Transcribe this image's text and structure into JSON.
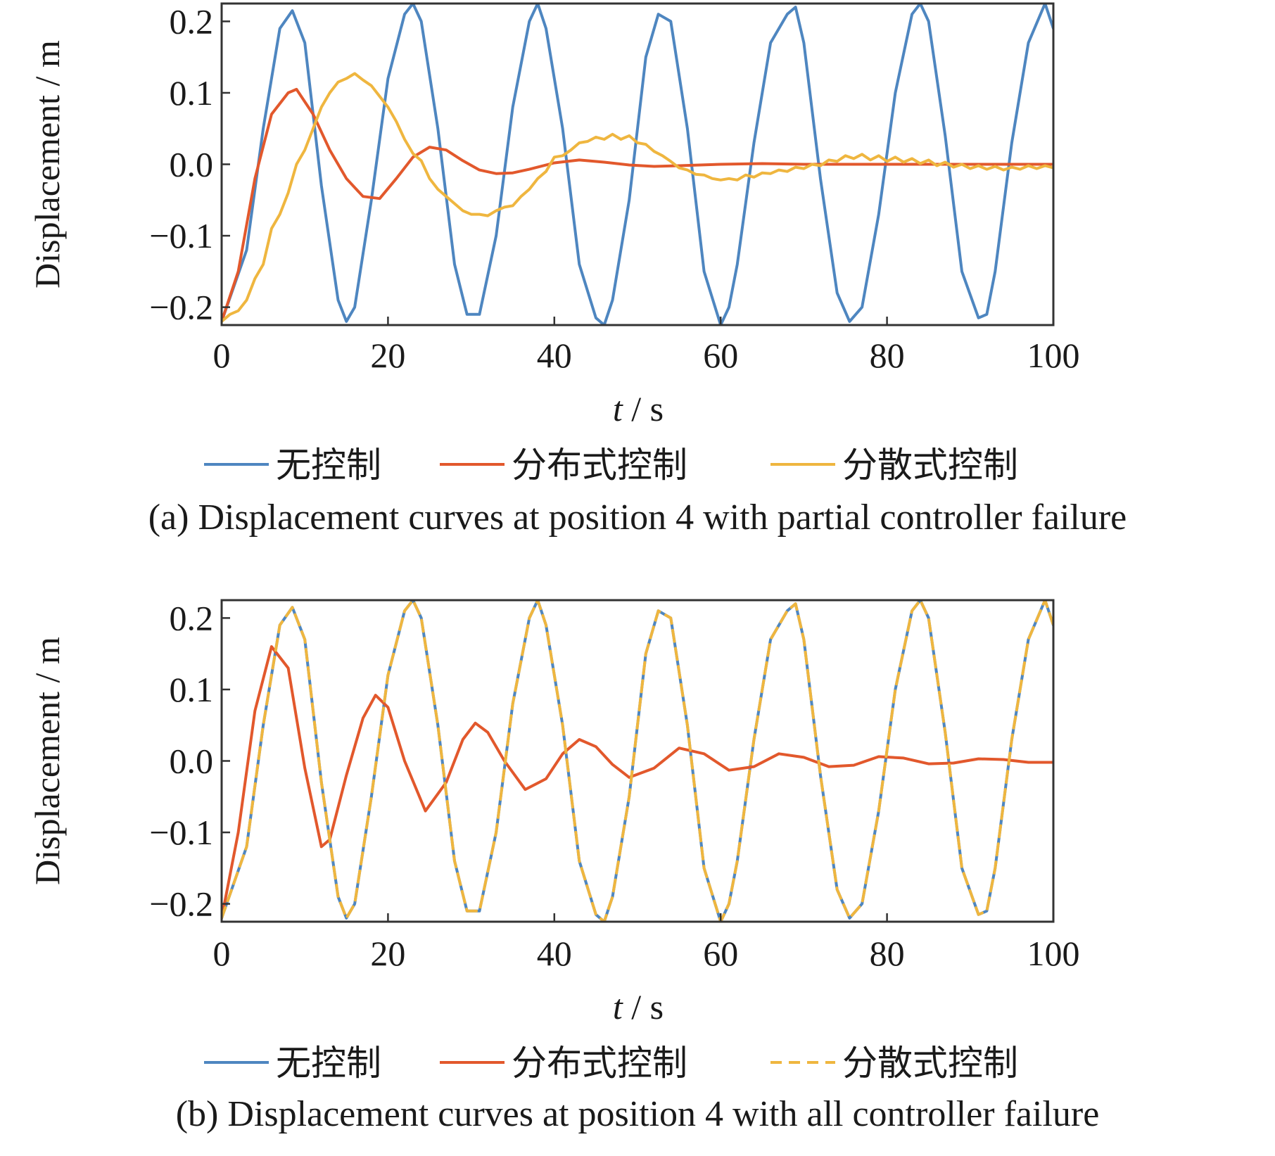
{
  "series_colors": {
    "none": "#4e86c0",
    "distributed": "#e2582c",
    "decentralized": "#efb63f"
  },
  "chart_data": [
    {
      "type": "line",
      "caption": "(a)  Displacement curves at position 4 with partial controller failure",
      "xlabel_var": "t",
      "xlabel_unit": " / s",
      "ylabel": "Displacement / m",
      "xlim": [
        0,
        100
      ],
      "ylim": [
        -0.225,
        0.225
      ],
      "xticks": [
        0,
        20,
        40,
        60,
        80,
        100
      ],
      "xtick_labels": [
        "0",
        "20",
        "40",
        "60",
        "80",
        "100"
      ],
      "yticks": [
        0.2,
        0.1,
        0.0,
        -0.1,
        -0.2
      ],
      "ytick_labels": [
        "0.2",
        "0.1",
        "0.0",
        "−0.1",
        "−0.2"
      ],
      "grid": false,
      "legend_position": "below",
      "series": [
        {
          "name": "无控制",
          "key": "none",
          "dash": "solid",
          "x": [
            0,
            3,
            5,
            7,
            8.5,
            10,
            12,
            14,
            15,
            16,
            18,
            20,
            22,
            23,
            24,
            26,
            28,
            29.5,
            31,
            33,
            35,
            37,
            38,
            39,
            41,
            43,
            45,
            46,
            47,
            49,
            51,
            52.5,
            54,
            56,
            58,
            60,
            61,
            62,
            64,
            66,
            68,
            69,
            70,
            72,
            74,
            75.5,
            77,
            79,
            81,
            83,
            84,
            85,
            87,
            89,
            91,
            92,
            93,
            95,
            97,
            99,
            100
          ],
          "y": [
            -0.22,
            -0.12,
            0.05,
            0.19,
            0.215,
            0.17,
            -0.03,
            -0.19,
            -0.22,
            -0.2,
            -0.05,
            0.12,
            0.21,
            0.225,
            0.2,
            0.05,
            -0.14,
            -0.21,
            -0.21,
            -0.1,
            0.08,
            0.2,
            0.225,
            0.19,
            0.05,
            -0.14,
            -0.215,
            -0.225,
            -0.19,
            -0.05,
            0.15,
            0.21,
            0.2,
            0.05,
            -0.15,
            -0.225,
            -0.2,
            -0.14,
            0.03,
            0.17,
            0.21,
            0.22,
            0.17,
            -0.02,
            -0.18,
            -0.22,
            -0.2,
            -0.07,
            0.1,
            0.21,
            0.225,
            0.2,
            0.04,
            -0.15,
            -0.215,
            -0.21,
            -0.15,
            0.03,
            0.17,
            0.225,
            0.19
          ]
        },
        {
          "name": "分布式控制",
          "key": "distributed",
          "dash": "solid",
          "x": [
            0,
            2,
            4,
            6,
            8,
            9,
            11,
            13,
            15,
            17,
            19,
            21,
            23,
            25,
            27,
            29,
            31,
            33,
            35,
            37,
            40,
            43,
            46,
            49,
            52,
            55,
            60,
            65,
            70,
            75,
            80,
            85,
            90,
            95,
            100
          ],
          "y": [
            -0.22,
            -0.15,
            -0.02,
            0.07,
            0.1,
            0.105,
            0.07,
            0.02,
            -0.02,
            -0.045,
            -0.048,
            -0.02,
            0.01,
            0.024,
            0.02,
            0.005,
            -0.008,
            -0.013,
            -0.012,
            -0.007,
            0.002,
            0.006,
            0.003,
            -0.001,
            -0.003,
            -0.002,
            0.0,
            0.001,
            0.0,
            0.0,
            0.0,
            0.0,
            0.0,
            0.0,
            0.0
          ]
        },
        {
          "name": "分散式控制",
          "key": "decentralized",
          "dash": "solid",
          "x": [
            0,
            1,
            2,
            3,
            4,
            5,
            6,
            7,
            8,
            9,
            10,
            11,
            12,
            13,
            14,
            15,
            16,
            17,
            18,
            19,
            20,
            21,
            22,
            23,
            24,
            25,
            26,
            27,
            28,
            29,
            30,
            31,
            32,
            33,
            34,
            35,
            36,
            37,
            38,
            39,
            40,
            41,
            42,
            43,
            44,
            45,
            46,
            47,
            48,
            49,
            50,
            51,
            52,
            53,
            54,
            55,
            56,
            57,
            58,
            59,
            60,
            61,
            62,
            63,
            64,
            65,
            66,
            67,
            68,
            69,
            70,
            71,
            72,
            73,
            74,
            75,
            76,
            77,
            78,
            79,
            80,
            81,
            82,
            83,
            84,
            85,
            86,
            87,
            88,
            89,
            90,
            91,
            92,
            93,
            94,
            95,
            96,
            97,
            98,
            99,
            100
          ],
          "y": [
            -0.22,
            -0.21,
            -0.205,
            -0.19,
            -0.16,
            -0.14,
            -0.09,
            -0.07,
            -0.04,
            0.0,
            0.02,
            0.05,
            0.08,
            0.1,
            0.115,
            0.12,
            0.127,
            0.118,
            0.11,
            0.095,
            0.08,
            0.06,
            0.035,
            0.015,
            0.005,
            -0.02,
            -0.035,
            -0.045,
            -0.055,
            -0.065,
            -0.07,
            -0.07,
            -0.072,
            -0.065,
            -0.06,
            -0.058,
            -0.045,
            -0.035,
            -0.02,
            -0.01,
            0.01,
            0.012,
            0.02,
            0.03,
            0.032,
            0.038,
            0.035,
            0.042,
            0.035,
            0.04,
            0.03,
            0.028,
            0.018,
            0.012,
            0.004,
            -0.005,
            -0.008,
            -0.014,
            -0.015,
            -0.02,
            -0.022,
            -0.02,
            -0.022,
            -0.015,
            -0.018,
            -0.012,
            -0.013,
            -0.008,
            -0.01,
            -0.004,
            -0.006,
            0.0,
            -0.002,
            0.006,
            0.004,
            0.012,
            0.008,
            0.014,
            0.006,
            0.012,
            0.004,
            0.01,
            0.003,
            0.008,
            0.001,
            0.006,
            -0.002,
            0.003,
            -0.004,
            0.0,
            -0.006,
            -0.002,
            -0.007,
            -0.003,
            -0.008,
            -0.004,
            -0.007,
            -0.002,
            -0.006,
            -0.002,
            -0.005
          ]
        }
      ]
    },
    {
      "type": "line",
      "caption": "(b)  Displacement curves at position 4 with all controller failure",
      "xlabel_var": "t",
      "xlabel_unit": " / s",
      "ylabel": "Displacement / m",
      "xlim": [
        0,
        100
      ],
      "ylim": [
        -0.225,
        0.225
      ],
      "xticks": [
        0,
        20,
        40,
        60,
        80,
        100
      ],
      "xtick_labels": [
        "0",
        "20",
        "40",
        "60",
        "80",
        "100"
      ],
      "yticks": [
        0.2,
        0.1,
        0.0,
        -0.1,
        -0.2
      ],
      "ytick_labels": [
        "0.2",
        "0.1",
        "0.0",
        "−0.1",
        "−0.2"
      ],
      "grid": false,
      "legend_position": "below",
      "series": [
        {
          "name": "无控制",
          "key": "none",
          "dash": "solid",
          "x": [
            0,
            3,
            5,
            7,
            8.5,
            10,
            12,
            14,
            15,
            16,
            18,
            20,
            22,
            23,
            24,
            26,
            28,
            29.5,
            31,
            33,
            35,
            37,
            38,
            39,
            41,
            43,
            45,
            46,
            47,
            49,
            51,
            52.5,
            54,
            56,
            58,
            60,
            61,
            62,
            64,
            66,
            68,
            69,
            70,
            72,
            74,
            75.5,
            77,
            79,
            81,
            83,
            84,
            85,
            87,
            89,
            91,
            92,
            93,
            95,
            97,
            99,
            100
          ],
          "y": [
            -0.22,
            -0.12,
            0.05,
            0.19,
            0.215,
            0.17,
            -0.03,
            -0.19,
            -0.22,
            -0.2,
            -0.05,
            0.12,
            0.21,
            0.225,
            0.2,
            0.05,
            -0.14,
            -0.21,
            -0.21,
            -0.1,
            0.08,
            0.2,
            0.225,
            0.19,
            0.05,
            -0.14,
            -0.215,
            -0.225,
            -0.19,
            -0.05,
            0.15,
            0.21,
            0.2,
            0.05,
            -0.15,
            -0.225,
            -0.2,
            -0.14,
            0.03,
            0.17,
            0.21,
            0.22,
            0.17,
            -0.02,
            -0.18,
            -0.22,
            -0.2,
            -0.07,
            0.1,
            0.21,
            0.225,
            0.2,
            0.04,
            -0.15,
            -0.215,
            -0.21,
            -0.15,
            0.03,
            0.17,
            0.225,
            0.19
          ]
        },
        {
          "name": "分布式控制",
          "key": "distributed",
          "dash": "solid",
          "x": [
            0,
            2,
            4,
            6,
            8,
            10,
            12,
            13,
            15,
            17,
            18.5,
            20,
            22,
            24.5,
            27,
            29,
            30.5,
            32,
            34,
            36.5,
            39,
            41,
            43,
            45,
            47,
            49,
            52,
            55,
            58,
            61,
            64,
            67,
            70,
            73,
            76,
            79,
            82,
            85,
            88,
            91,
            94,
            97,
            100
          ],
          "y": [
            -0.22,
            -0.1,
            0.07,
            0.16,
            0.13,
            -0.01,
            -0.12,
            -0.11,
            -0.02,
            0.06,
            0.092,
            0.075,
            0.0,
            -0.07,
            -0.03,
            0.03,
            0.053,
            0.04,
            0.0,
            -0.04,
            -0.025,
            0.01,
            0.03,
            0.02,
            -0.005,
            -0.023,
            -0.01,
            0.018,
            0.01,
            -0.013,
            -0.008,
            0.01,
            0.005,
            -0.008,
            -0.006,
            0.006,
            0.004,
            -0.004,
            -0.003,
            0.003,
            0.002,
            -0.002,
            -0.002
          ]
        },
        {
          "name": "分散式控制",
          "key": "decentralized",
          "dash": "dashed",
          "x": [
            0,
            3,
            5,
            7,
            8.5,
            10,
            12,
            14,
            15,
            16,
            18,
            20,
            22,
            23,
            24,
            26,
            28,
            29.5,
            31,
            33,
            35,
            37,
            38,
            39,
            41,
            43,
            45,
            46,
            47,
            49,
            51,
            52.5,
            54,
            56,
            58,
            60,
            61,
            62,
            64,
            66,
            68,
            69,
            70,
            72,
            74,
            75.5,
            77,
            79,
            81,
            83,
            84,
            85,
            87,
            89,
            91,
            92,
            93,
            95,
            97,
            99,
            100
          ],
          "y": [
            -0.22,
            -0.12,
            0.05,
            0.19,
            0.215,
            0.17,
            -0.03,
            -0.19,
            -0.22,
            -0.2,
            -0.05,
            0.12,
            0.21,
            0.225,
            0.2,
            0.05,
            -0.14,
            -0.21,
            -0.21,
            -0.1,
            0.08,
            0.2,
            0.225,
            0.19,
            0.05,
            -0.14,
            -0.215,
            -0.225,
            -0.19,
            -0.05,
            0.15,
            0.21,
            0.2,
            0.05,
            -0.15,
            -0.225,
            -0.2,
            -0.14,
            0.03,
            0.17,
            0.21,
            0.22,
            0.17,
            -0.02,
            -0.18,
            -0.22,
            -0.2,
            -0.07,
            0.1,
            0.21,
            0.225,
            0.2,
            0.04,
            -0.15,
            -0.215,
            -0.21,
            -0.15,
            0.03,
            0.17,
            0.225,
            0.19
          ]
        }
      ]
    }
  ]
}
